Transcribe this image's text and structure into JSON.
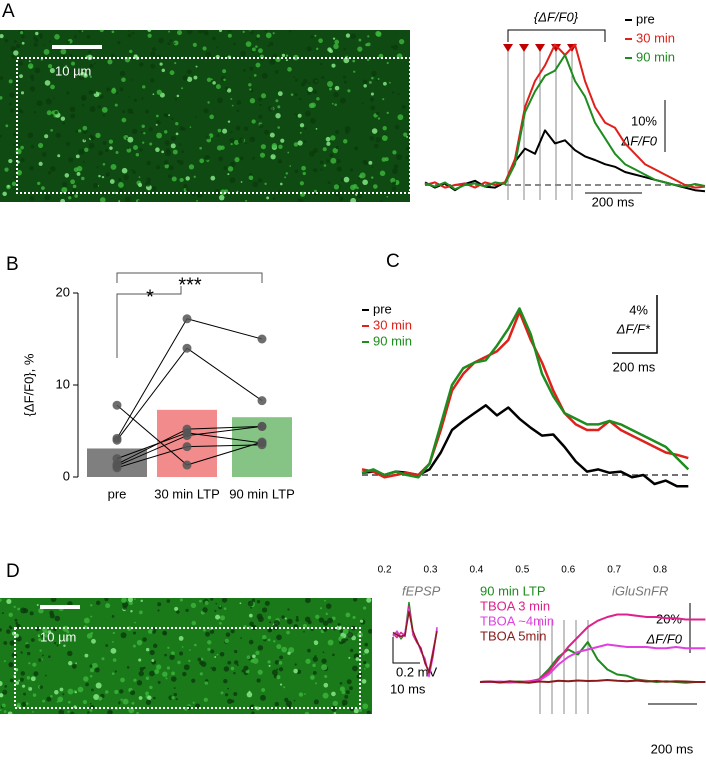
{
  "panel_labels": [
    "A",
    "B",
    "C",
    "D"
  ],
  "images": [
    {
      "scale_label": "10 µm"
    },
    {
      "scale_label": "10 µm"
    }
  ],
  "chart_data": [
    {
      "type": "line",
      "bracket_label": "{ΔF/F0}",
      "scale_labels": [
        "10%",
        "ΔF/F0",
        "200 ms"
      ],
      "x": [
        0,
        35,
        70,
        105,
        140,
        175,
        210,
        245,
        280,
        315,
        350,
        385,
        420,
        455,
        490,
        525,
        560,
        595,
        630,
        665,
        700,
        735,
        770,
        805,
        840,
        875,
        910,
        945,
        980
      ],
      "series": [
        {
          "name": "pre",
          "color": "#000000",
          "values": [
            0.5,
            -0.5,
            0.3,
            -1,
            0.2,
            0.8,
            -0.3,
            -0.5,
            0.5,
            4.5,
            7,
            6,
            10.5,
            8,
            8.6,
            6.7,
            5.5,
            4.8,
            4,
            3.5,
            2.5,
            2,
            1.5,
            1,
            0.5,
            0,
            -0.5,
            -1,
            -1.2
          ]
        },
        {
          "name": "30 min",
          "color": "#e0201b",
          "values": [
            0,
            0.5,
            -0.5,
            0,
            0.3,
            -0.5,
            0.5,
            0,
            0.5,
            5,
            15,
            20,
            23,
            27,
            25,
            27,
            20,
            15,
            12,
            11,
            8,
            6,
            4,
            3,
            2,
            1,
            0,
            -0.5,
            -0.3
          ]
        },
        {
          "name": "90 min",
          "color": "#1e8c1e",
          "values": [
            0.3,
            -0.3,
            0.5,
            -0.8,
            0,
            0.3,
            -0.3,
            0.5,
            0.2,
            4,
            14,
            18,
            21,
            22,
            25,
            20,
            17,
            12,
            9,
            6,
            4,
            3,
            2,
            1,
            0.5,
            0,
            -0.3,
            0.2,
            -0.2
          ]
        }
      ]
    },
    {
      "type": "bar",
      "categories": [
        "pre",
        "30 min LTP",
        "90 min LTP"
      ],
      "values": [
        3.1,
        7.3,
        6.5
      ],
      "colors": [
        "#7f7f7f",
        "#f28b8b",
        "#86c486"
      ],
      "ylim": [
        0,
        20
      ],
      "yticks": [
        0,
        10,
        20
      ],
      "ylabel": "{ΔF/F0}, %",
      "significance": [
        "*",
        "***"
      ],
      "points": [
        [
          4.2,
          17.2,
          15.0
        ],
        [
          4.0,
          14.0,
          8.3
        ],
        [
          1.4,
          5.2,
          5.5
        ],
        [
          2.0,
          4.8,
          3.7
        ],
        [
          1.2,
          4.5,
          5.5
        ],
        [
          1.0,
          3.3,
          3.5
        ],
        [
          7.8,
          1.3,
          3.8
        ]
      ]
    },
    {
      "type": "line",
      "scale_labels": [
        "4%",
        "ΔF/F*",
        "200 ms"
      ],
      "x": [
        0,
        50,
        100,
        150,
        200,
        250,
        300,
        350,
        400,
        450,
        500,
        550,
        600,
        650,
        700,
        750,
        800,
        850,
        900,
        950,
        1000,
        1050,
        1100,
        1150,
        1200,
        1250,
        1300,
        1350,
        1400,
        1450
      ],
      "series": [
        {
          "name": "pre",
          "color": "#000000",
          "values": [
            0.2,
            0.3,
            0,
            0.3,
            0.2,
            0,
            0.5,
            2,
            4,
            4.8,
            5.5,
            6.2,
            5.3,
            6.0,
            5.0,
            4.2,
            3.5,
            3.6,
            2.5,
            1.2,
            0.3,
            0.5,
            0.2,
            0.3,
            -0.2,
            0,
            -0.8,
            -0.5,
            -1.0,
            -1.0
          ]
        },
        {
          "name": "30 min",
          "color": "#e0201b",
          "values": [
            0.5,
            0.3,
            -0.2,
            0,
            0.2,
            0,
            1,
            4,
            7.5,
            9,
            10,
            10.5,
            11,
            12,
            14.5,
            12,
            10,
            7.5,
            5.5,
            4.5,
            4,
            4,
            4.8,
            4,
            3.5,
            3,
            2.5,
            2,
            1.8,
            1.5
          ]
        },
        {
          "name": "90 min",
          "color": "#1e8c1e",
          "values": [
            0.2,
            0.5,
            0,
            0.3,
            0,
            -0.2,
            1,
            4.5,
            8,
            9.5,
            10,
            10.2,
            11.5,
            13,
            14.8,
            12.5,
            9,
            7,
            5.5,
            5,
            4.5,
            4.5,
            4.8,
            4.5,
            4,
            3.5,
            3,
            2.5,
            1.5,
            0.5
          ]
        }
      ]
    },
    {
      "type": "line",
      "title": "fEPSP",
      "scale_labels": [
        "0.2 mV",
        "10 ms"
      ],
      "top_xlim": [
        0.19,
        0.9
      ],
      "top_xticks": [
        0.2,
        0.3,
        0.4,
        0.5,
        0.6,
        0.7,
        0.8
      ],
      "x": [
        0,
        1.5,
        3,
        4.5,
        6,
        7.5,
        9,
        10.5,
        12,
        13.5,
        15,
        16.5
      ],
      "series": [
        {
          "color": "#1e8c1e",
          "values": [
            0,
            0.02,
            -0.03,
            0.01,
            0.25,
            0.02,
            -0.05,
            -0.12,
            -0.2,
            -0.3,
            -0.15,
            0.05
          ]
        },
        {
          "color": "#e0208c",
          "values": [
            0.01,
            -0.02,
            0.02,
            -0.01,
            0.22,
            0,
            -0.06,
            -0.1,
            -0.22,
            -0.28,
            -0.12,
            0.04
          ]
        },
        {
          "color": "#e040e0",
          "values": [
            -0.01,
            0.03,
            -0.02,
            0.02,
            0.2,
            0.01,
            -0.04,
            -0.13,
            -0.18,
            -0.32,
            -0.17,
            0.06
          ]
        },
        {
          "color": "#8b1a1a",
          "values": [
            0.02,
            0,
            -0.01,
            0,
            0.18,
            0.03,
            -0.05,
            -0.11,
            -0.21,
            -0.29,
            -0.14,
            0.03
          ]
        }
      ]
    },
    {
      "type": "line",
      "title": "iGluSnFR",
      "scale_labels": [
        "20%",
        "ΔF/F0",
        "200 ms"
      ],
      "x": [
        0,
        40,
        80,
        120,
        160,
        200,
        240,
        280,
        320,
        360,
        400,
        440,
        480,
        520,
        560,
        600,
        640,
        680,
        720,
        760,
        800,
        840,
        880,
        920
      ],
      "series": [
        {
          "name": "90 min LTP",
          "color": "#1e8c1e",
          "values": [
            0,
            0.2,
            -0.2,
            0,
            0.2,
            0,
            1,
            5,
            10,
            13,
            11,
            16,
            9,
            5,
            3,
            2.5,
            1,
            0.5,
            0,
            0.3,
            0,
            -0.3,
            0,
            0
          ]
        },
        {
          "name": "TBOA 3 min",
          "color": "#e0208c",
          "values": [
            0,
            0.2,
            0,
            -0.2,
            0,
            0.3,
            1,
            4,
            9,
            14,
            18,
            22,
            24.5,
            26,
            27,
            27,
            26.5,
            26,
            26,
            25.5,
            25.5,
            25,
            25,
            25
          ]
        },
        {
          "name": "TBOA ~4min",
          "color": "#e040e0",
          "values": [
            0,
            0,
            0.2,
            0,
            -0.2,
            0,
            0.5,
            3,
            7,
            10,
            12,
            13,
            14,
            15,
            14.5,
            14,
            14,
            14,
            13.5,
            13.5,
            14,
            13.5,
            13.5,
            13.5
          ]
        },
        {
          "name": "TBOA 5min",
          "color": "#8b1a1a",
          "values": [
            0,
            0.2,
            -0.2,
            0.3,
            0,
            -0.3,
            0.2,
            0,
            0.5,
            0.3,
            0.6,
            0.4,
            0.5,
            0.8,
            0.5,
            0.3,
            0.6,
            0.2,
            0.4,
            0.1,
            0.3,
            0.2,
            0,
            0
          ]
        }
      ]
    }
  ]
}
